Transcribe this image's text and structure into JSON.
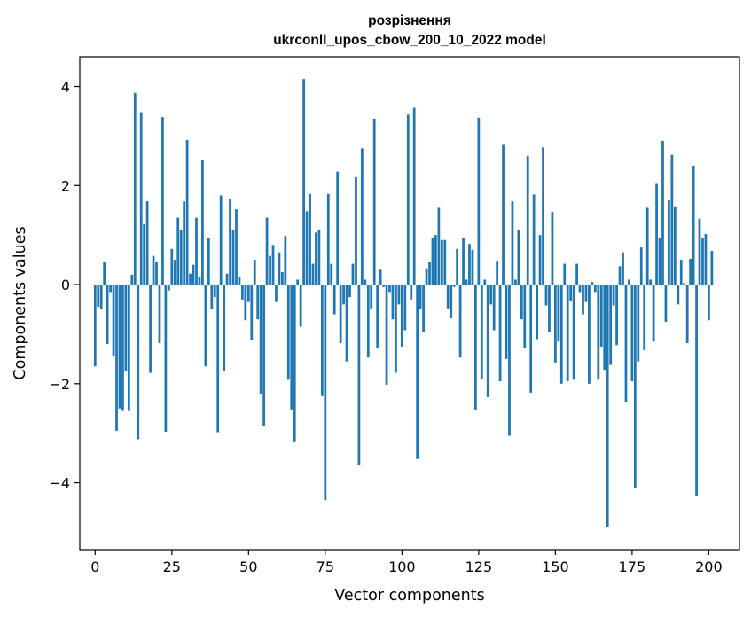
{
  "chart_data": {
    "type": "bar",
    "title": "розрізнення",
    "subtitle": "ukrconll_upos_cbow_200_10_2022 model",
    "xlabel": "Vector components",
    "ylabel": "Components values",
    "xlim": [
      -5,
      210
    ],
    "ylim": [
      -5.35,
      4.6
    ],
    "grid": false,
    "bar_color": "#1f77b4",
    "x_ticks": [
      0,
      25,
      50,
      75,
      100,
      125,
      150,
      175,
      200
    ],
    "y_ticks": [
      -4,
      -2,
      0,
      2,
      4
    ],
    "x_tick_labels": [
      "0",
      "25",
      "50",
      "75",
      "100",
      "125",
      "150",
      "175",
      "200"
    ],
    "y_tick_labels": [
      "−4",
      "−2",
      "0",
      "2",
      "4"
    ],
    "values": [
      -1.65,
      -0.45,
      -0.5,
      0.45,
      -1.2,
      -0.15,
      -1.45,
      -2.95,
      -2.5,
      -2.55,
      -1.75,
      -2.55,
      0.2,
      3.87,
      -3.12,
      3.48,
      1.22,
      1.68,
      -1.78,
      0.58,
      0.45,
      -1.18,
      3.38,
      -2.97,
      -0.12,
      0.72,
      0.5,
      1.35,
      1.1,
      1.68,
      2.92,
      0.22,
      0.4,
      1.35,
      0.15,
      2.52,
      -1.65,
      0.95,
      -0.5,
      -0.25,
      -2.98,
      1.8,
      -1.75,
      0.22,
      1.72,
      1.1,
      1.52,
      0.15,
      -0.3,
      -0.72,
      -0.35,
      -1.12,
      0.5,
      -0.7,
      -2.2,
      -2.85,
      1.35,
      0.58,
      0.8,
      -0.35,
      0.65,
      0.25,
      0.98,
      -1.92,
      -2.52,
      -3.18,
      0.1,
      -0.85,
      4.15,
      1.48,
      1.83,
      0.42,
      1.05,
      1.1,
      -2.25,
      -4.35,
      1.83,
      0.42,
      -0.6,
      2.28,
      -1.18,
      -0.4,
      -1.55,
      -0.25,
      0.42,
      2.17,
      -3.65,
      2.75,
      0.1,
      -1.47,
      -0.48,
      3.35,
      -1.27,
      0.3,
      -0.05,
      -2.02,
      -0.15,
      -0.7,
      -1.78,
      -0.4,
      -1.25,
      -0.92,
      3.43,
      -0.3,
      3.57,
      -3.52,
      -0.5,
      -0.95,
      0.33,
      0.45,
      0.95,
      1.0,
      1.55,
      0.9,
      0.9,
      -0.48,
      -0.68,
      -0.05,
      0.72,
      -1.47,
      0.95,
      0.1,
      0.82,
      0.7,
      -2.52,
      3.37,
      -1.9,
      0.1,
      -2.27,
      -0.4,
      -0.92,
      0.48,
      -1.95,
      2.82,
      -1.5,
      -3.05,
      1.68,
      0.1,
      1.1,
      -0.7,
      -1.27,
      2.6,
      -2.18,
      1.82,
      -1.1,
      1.0,
      2.77,
      -0.42,
      -0.95,
      1.47,
      -1.57,
      -1.15,
      -2.0,
      0.42,
      -1.95,
      -0.32,
      -1.92,
      0.42,
      -0.15,
      -0.6,
      -0.35,
      -2.0,
      0.05,
      -0.15,
      -1.92,
      -1.25,
      -1.72,
      -4.9,
      -1.62,
      -0.42,
      -1.22,
      0.37,
      0.65,
      -2.37,
      0.1,
      -1.95,
      -4.1,
      -1.55,
      0.75,
      -1.32,
      1.55,
      0.1,
      -1.15,
      2.05,
      0.95,
      2.9,
      -0.75,
      1.7,
      2.62,
      1.58,
      -0.4,
      0.5,
      0.03,
      -1.18,
      0.52,
      2.4,
      -4.27,
      1.33,
      0.93,
      1.02,
      -0.72,
      0.68
    ]
  }
}
